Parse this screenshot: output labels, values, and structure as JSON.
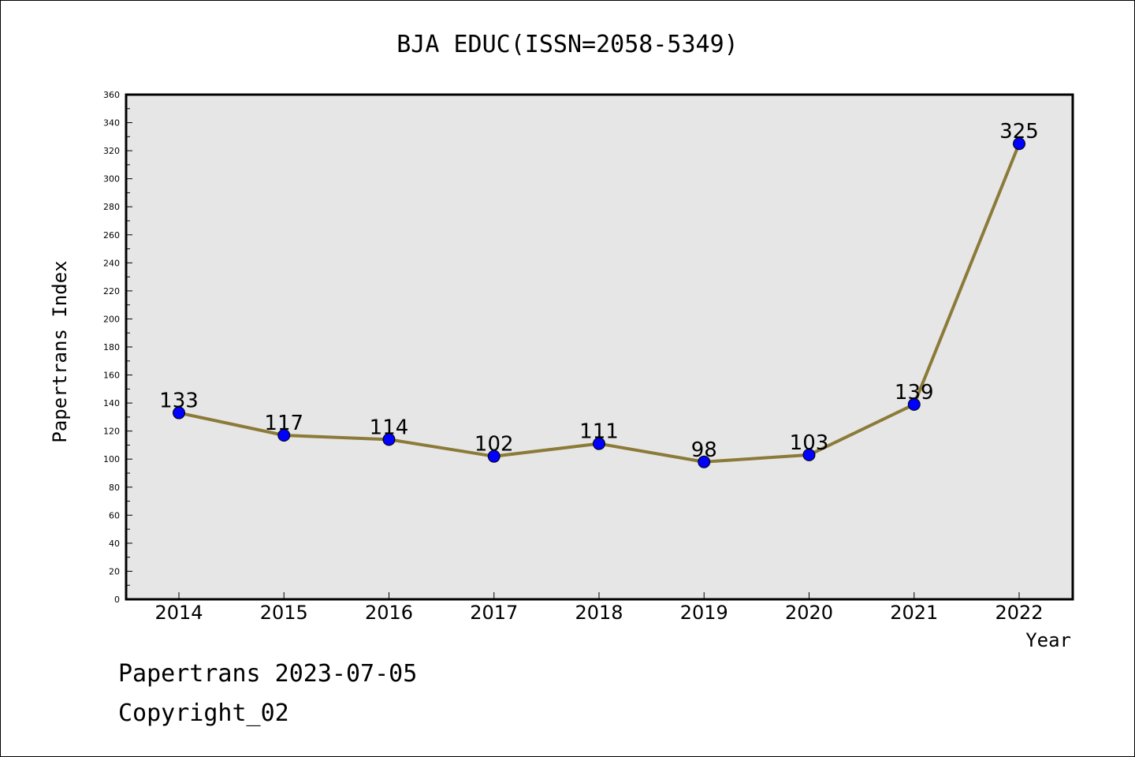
{
  "chart_data": {
    "type": "line",
    "title": "BJA EDUC(ISSN=2058-5349)",
    "xlabel": "Year",
    "ylabel": "Papertrans Index",
    "categories": [
      "2014",
      "2015",
      "2016",
      "2017",
      "2018",
      "2019",
      "2020",
      "2021",
      "2022"
    ],
    "values": [
      133,
      117,
      114,
      102,
      111,
      98,
      103,
      139,
      325
    ],
    "data_labels": [
      "133",
      "117",
      "114",
      "102",
      "111",
      "98",
      "103",
      "139",
      "325"
    ],
    "ylim": [
      0,
      360
    ],
    "y_tick_labels": [
      "0",
      "20",
      "40",
      "60",
      "80",
      "100",
      "120",
      "140",
      "160",
      "180",
      "200",
      "220",
      "240",
      "260",
      "280",
      "300",
      "320",
      "340",
      "360"
    ],
    "grid": false,
    "colors": {
      "line": "#8b7a38",
      "marker": "#0000ff",
      "plot_background": "#e6e6e6",
      "frame": "#000000"
    }
  },
  "footer": {
    "line1": "Papertrans 2023-07-05",
    "line2": "Copyright_02"
  }
}
